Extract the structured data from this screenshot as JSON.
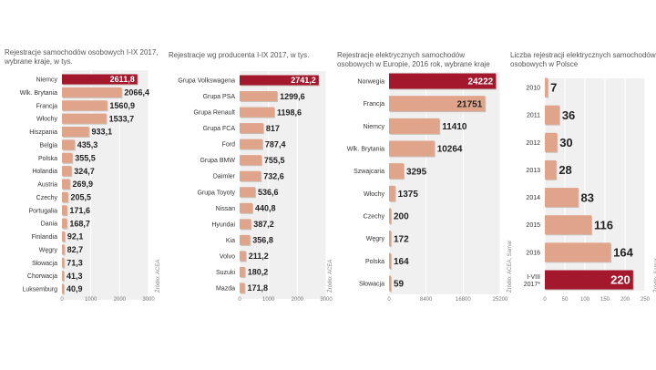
{
  "chart_data": [
    {
      "type": "bar",
      "orientation": "horizontal",
      "title": "Rejestracje samochodów osobowych I-IX 2017, wybrane kraje, w tys.",
      "source": "Źródło: ACEA",
      "categories": [
        "Niemcy",
        "Wlk. Brytania",
        "Francja",
        "Włochy",
        "Hiszpania",
        "Belgia",
        "Polska",
        "Holandia",
        "Austria",
        "Czechy",
        "Portugalia",
        "Dania",
        "Finlandia",
        "Węgry",
        "Słowacja",
        "Chorwacja",
        "Luksemburg"
      ],
      "values": [
        2611.8,
        2066.4,
        1560.9,
        1533.7,
        933.1,
        435.3,
        355.5,
        324.7,
        269.9,
        205.5,
        171.6,
        168.7,
        92.1,
        82.7,
        71.3,
        41.3,
        40.9
      ],
      "labels": [
        "2611,8",
        "2066,4",
        "1560,9",
        "1533,7",
        "933,1",
        "435,3",
        "355,5",
        "324,7",
        "269,9",
        "205,5",
        "171,6",
        "168,7",
        "92,1",
        "82,7",
        "71,3",
        "41,3",
        "40,9"
      ],
      "highlight": [
        0
      ],
      "xlim": [
        0,
        3000
      ],
      "xticks": [
        0,
        1000,
        2000,
        3000
      ]
    },
    {
      "type": "bar",
      "orientation": "horizontal",
      "title": "Rejestracje wg producenta I-IX 2017, w tys.",
      "source": "Źródło: ACEA",
      "categories": [
        "Grupa Volkswagena",
        "Grupa PSA",
        "Grupa Renault",
        "Grupa FCA",
        "Ford",
        "Grupa BMW",
        "Daimler",
        "Grupa Toyoty",
        "Nissan",
        "Hyundai",
        "Kia",
        "Volvo",
        "Suzuki",
        "Mazda"
      ],
      "values": [
        2741.2,
        1299.6,
        1198.6,
        817,
        787.4,
        755.5,
        732.6,
        536.6,
        440.8,
        387.2,
        356.8,
        211.2,
        180.2,
        171.8
      ],
      "labels": [
        "2741,2",
        "1299,6",
        "1198,6",
        "817",
        "787,4",
        "755,5",
        "732,6",
        "536,6",
        "440,8",
        "387,2",
        "356,8",
        "211,2",
        "180,2",
        "171,8"
      ],
      "highlight": [
        0
      ],
      "xlim": [
        0,
        3000
      ],
      "xticks": [
        0,
        1000,
        2000,
        3000
      ]
    },
    {
      "type": "bar",
      "orientation": "horizontal",
      "title": "Rejestracje elektrycznych samochodów osobowych w Europie, 2016 rok, wybrane kraje",
      "source": "Źródło: ACEA, Samar",
      "categories": [
        "Norwegia",
        "Francja",
        "Niemcy",
        "Wlk. Brytania",
        "Szwajcaria",
        "Włochy",
        "Czechy",
        "Węgry",
        "Polska",
        "Słowacja"
      ],
      "values": [
        24222,
        21751,
        11410,
        10264,
        3295,
        1375,
        200,
        172,
        164,
        59
      ],
      "labels": [
        "24222",
        "21751",
        "11410",
        "10264",
        "3295",
        "1375",
        "200",
        "172",
        "164",
        "59"
      ],
      "highlight": [
        0
      ],
      "xlim": [
        0,
        25200
      ],
      "xticks": [
        0,
        8400,
        16800,
        25200
      ]
    },
    {
      "type": "bar",
      "orientation": "horizontal",
      "title": "Liczba rejestracji elektrycznych samochodów osobowych w Polsce",
      "source": "Źródło: Samar",
      "categories": [
        "2010",
        "2011",
        "2012",
        "2013",
        "2014",
        "2015",
        "2016",
        "I-VIII 2017*"
      ],
      "values": [
        7,
        36,
        30,
        28,
        83,
        116,
        164,
        220
      ],
      "labels": [
        "7",
        "36",
        "30",
        "28",
        "83",
        "116",
        "164",
        "220"
      ],
      "highlight": [
        7
      ],
      "xlim": [
        0,
        250
      ],
      "xticks": [
        0,
        50,
        100,
        150,
        200,
        250
      ]
    }
  ],
  "colors": {
    "bar": "#e0a48a",
    "highlight": "#a3182c",
    "text": "#222",
    "grid": "#f0f0f0"
  }
}
